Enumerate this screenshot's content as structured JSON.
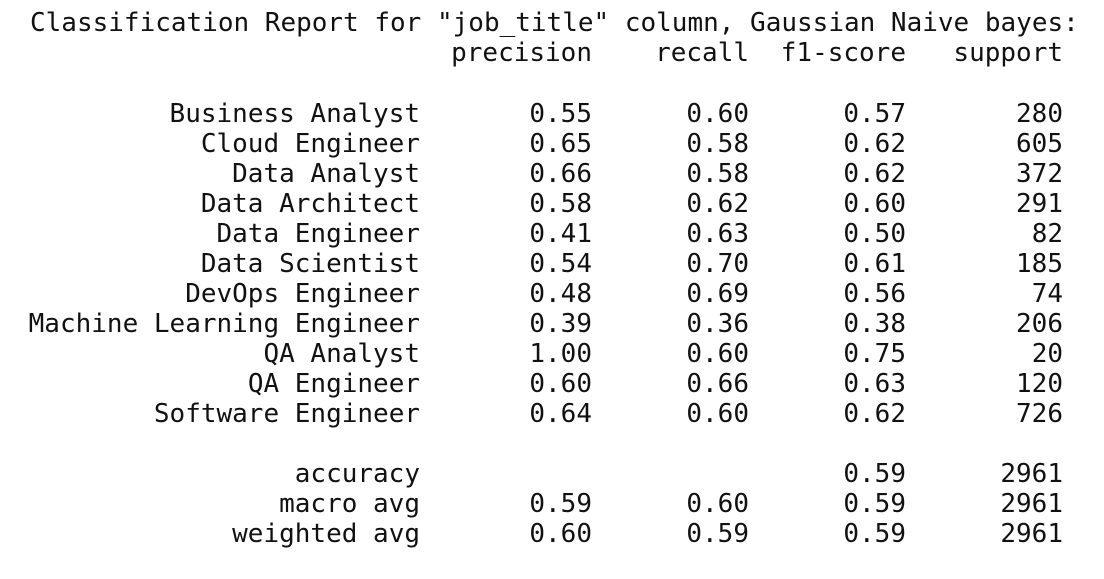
{
  "title": "Classification Report for \"job_title\" column, Gaussian Naive bayes:",
  "headers": {
    "precision": "precision",
    "recall": "recall",
    "f1": "f1-score",
    "support": "support"
  },
  "rows": [
    {
      "label": "Business Analyst",
      "precision": "0.55",
      "recall": "0.60",
      "f1": "0.57",
      "support": "280"
    },
    {
      "label": "Cloud Engineer",
      "precision": "0.65",
      "recall": "0.58",
      "f1": "0.62",
      "support": "605"
    },
    {
      "label": "Data Analyst",
      "precision": "0.66",
      "recall": "0.58",
      "f1": "0.62",
      "support": "372"
    },
    {
      "label": "Data Architect",
      "precision": "0.58",
      "recall": "0.62",
      "f1": "0.60",
      "support": "291"
    },
    {
      "label": "Data Engineer",
      "precision": "0.41",
      "recall": "0.63",
      "f1": "0.50",
      "support": "82"
    },
    {
      "label": "Data Scientist",
      "precision": "0.54",
      "recall": "0.70",
      "f1": "0.61",
      "support": "185"
    },
    {
      "label": "DevOps Engineer",
      "precision": "0.48",
      "recall": "0.69",
      "f1": "0.56",
      "support": "74"
    },
    {
      "label": "Machine Learning Engineer",
      "precision": "0.39",
      "recall": "0.36",
      "f1": "0.38",
      "support": "206"
    },
    {
      "label": "QA Analyst",
      "precision": "1.00",
      "recall": "0.60",
      "f1": "0.75",
      "support": "20"
    },
    {
      "label": "QA Engineer",
      "precision": "0.60",
      "recall": "0.66",
      "f1": "0.63",
      "support": "120"
    },
    {
      "label": "Software Engineer",
      "precision": "0.64",
      "recall": "0.60",
      "f1": "0.62",
      "support": "726"
    }
  ],
  "summary": {
    "accuracy": {
      "label": "accuracy",
      "f1": "0.59",
      "support": "2961"
    },
    "macro": {
      "label": "macro avg",
      "precision": "0.59",
      "recall": "0.60",
      "f1": "0.59",
      "support": "2961"
    },
    "weighted": {
      "label": "weighted avg",
      "precision": "0.60",
      "recall": "0.59",
      "f1": "0.59",
      "support": "2961"
    }
  }
}
